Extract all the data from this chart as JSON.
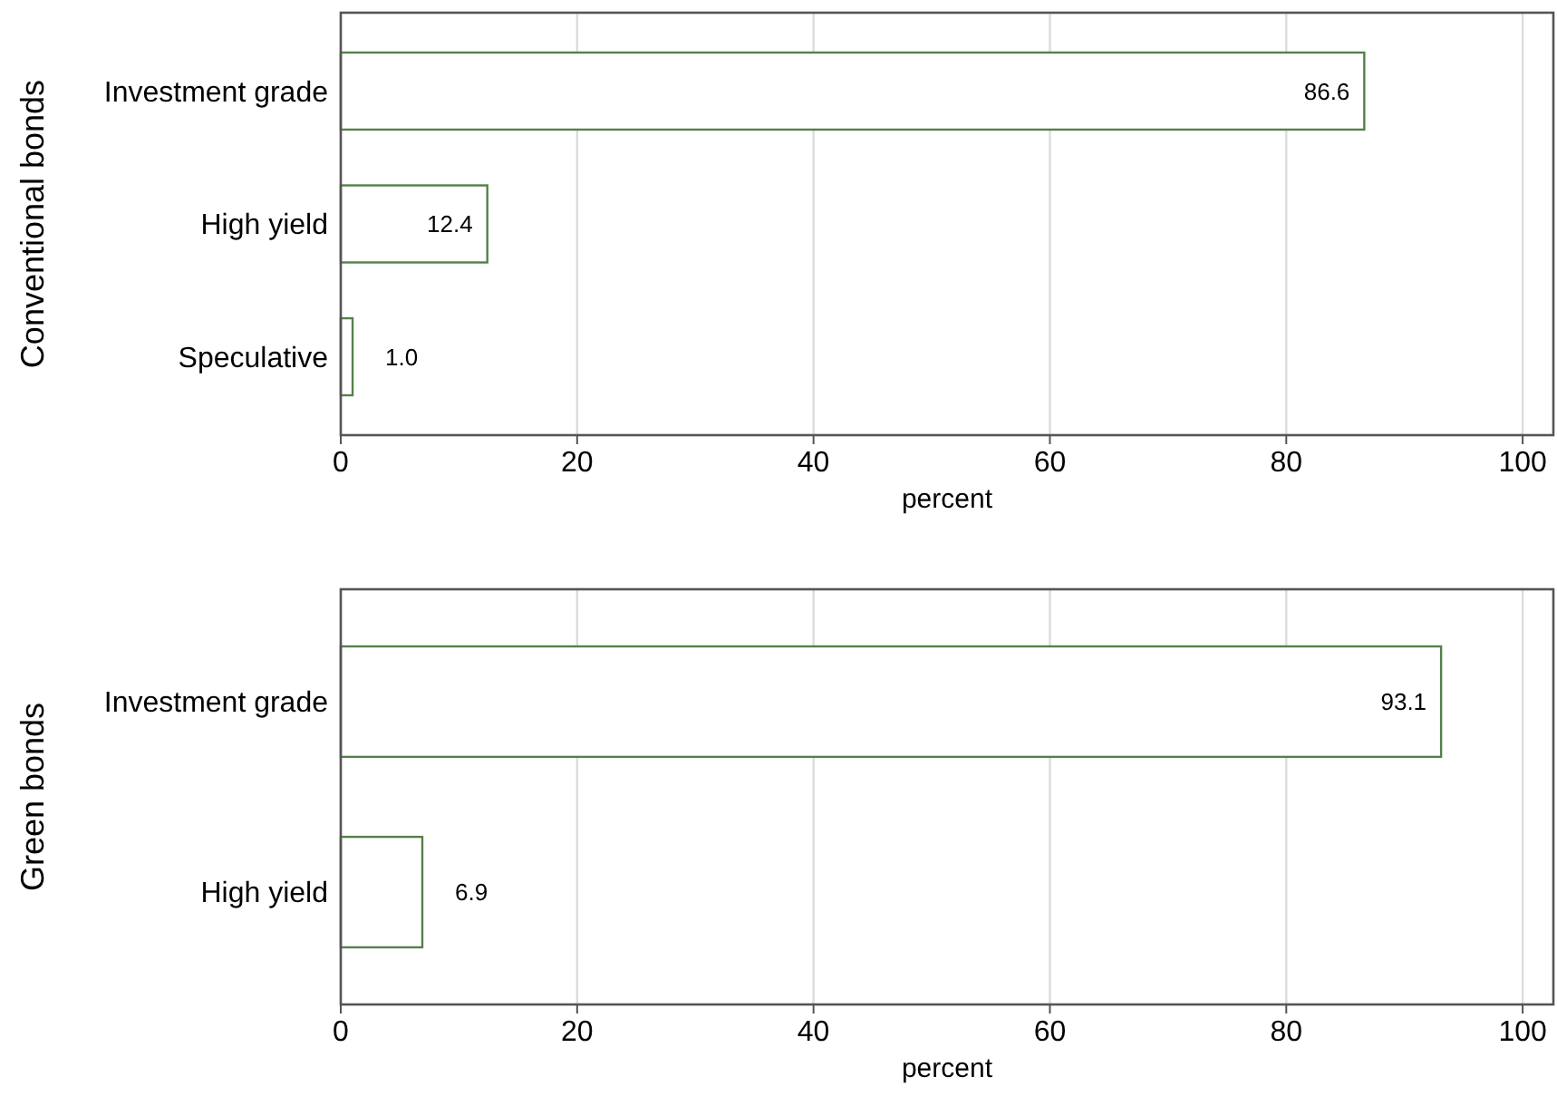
{
  "chart_data": [
    {
      "type": "bar",
      "orientation": "horizontal",
      "ylabel": "Conventional bonds",
      "xlabel": "percent",
      "categories": [
        "Investment grade",
        "High yield",
        "Speculative"
      ],
      "values": [
        86.6,
        12.4,
        1.0
      ],
      "value_labels": [
        "86.6",
        "12.4",
        "1.0"
      ],
      "color": "#55804a",
      "xlim": [
        0,
        102.6
      ],
      "xticks": [
        0,
        20,
        40,
        60,
        80,
        100
      ],
      "grid": "x"
    },
    {
      "type": "bar",
      "orientation": "horizontal",
      "ylabel": "Green bonds",
      "xlabel": "percent",
      "categories": [
        "Investment grade",
        "High yield"
      ],
      "values": [
        93.1,
        6.9
      ],
      "value_labels": [
        "93.1",
        "6.9"
      ],
      "color": "#55804a",
      "xlim": [
        0,
        102.6
      ],
      "xticks": [
        0,
        20,
        40,
        60,
        80,
        100
      ],
      "grid": "x"
    }
  ]
}
